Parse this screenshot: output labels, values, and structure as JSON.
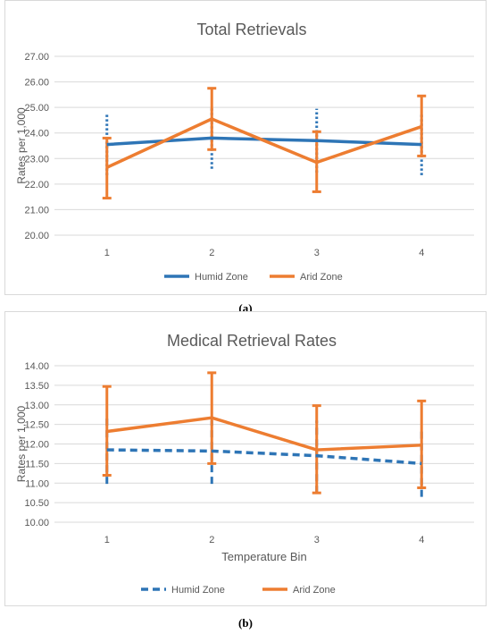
{
  "chart_data": [
    {
      "type": "line",
      "panel_label": "a",
      "title": "Total Retrievals",
      "xlabel": "",
      "ylabel": "Rates per 1,000",
      "categories": [
        "1",
        "2",
        "3",
        "4"
      ],
      "ylim": [
        20.0,
        27.0
      ],
      "yticks": [
        "20.00",
        "21.00",
        "22.00",
        "23.00",
        "24.00",
        "25.00",
        "26.00",
        "27.00"
      ],
      "grid": true,
      "legend": "bottom",
      "series": [
        {
          "name": "Humid Zone",
          "color": "#2E75B6",
          "line_style": "solid",
          "errorbar_style": "dotted",
          "values": [
            23.55,
            23.8,
            23.7,
            23.55
          ],
          "err_low": [
            22.35,
            22.6,
            22.45,
            22.35
          ],
          "err_high": [
            24.8,
            25.0,
            24.95,
            24.75
          ]
        },
        {
          "name": "Arid Zone",
          "color": "#ED7D31",
          "line_style": "solid",
          "errorbar_style": "solid",
          "values": [
            22.65,
            24.55,
            22.85,
            24.25
          ],
          "err_low": [
            21.45,
            23.35,
            21.7,
            23.1
          ],
          "err_high": [
            23.8,
            25.75,
            24.05,
            25.45
          ]
        }
      ]
    },
    {
      "type": "line",
      "panel_label": "b",
      "title": "Medical Retrieval Rates",
      "xlabel": "Temperature Bin",
      "ylabel": "Rates per 1,000",
      "categories": [
        "1",
        "2",
        "3",
        "4"
      ],
      "ylim": [
        10.0,
        14.0
      ],
      "yticks": [
        "10.00",
        "10.50",
        "11.00",
        "11.50",
        "12.00",
        "12.50",
        "13.00",
        "13.50",
        "14.00"
      ],
      "grid": true,
      "legend": "bottom",
      "series": [
        {
          "name": "Humid Zone",
          "color": "#2E75B6",
          "line_style": "dashed",
          "errorbar_style": "dashed",
          "values": [
            11.85,
            11.82,
            11.7,
            11.5
          ],
          "err_low": [
            10.98,
            10.98,
            10.75,
            10.65
          ],
          "err_high": [
            12.72,
            12.6,
            12.6,
            12.38
          ]
        },
        {
          "name": "Arid Zone",
          "color": "#ED7D31",
          "line_style": "solid",
          "errorbar_style": "solid",
          "values": [
            12.32,
            12.67,
            11.85,
            11.97
          ],
          "err_low": [
            11.2,
            11.5,
            10.75,
            10.88
          ],
          "err_high": [
            13.47,
            13.82,
            12.98,
            13.1
          ]
        }
      ]
    }
  ],
  "captions": [
    "(a)",
    "(b)"
  ]
}
